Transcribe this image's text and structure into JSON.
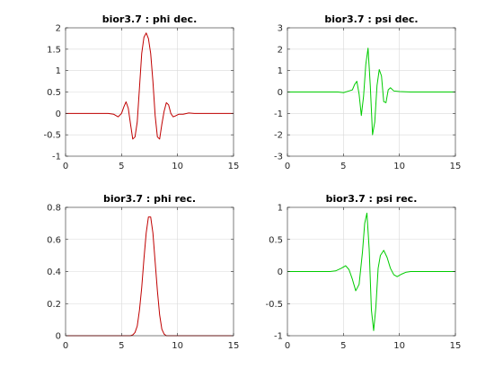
{
  "chart_data": [
    {
      "type": "line",
      "title": "bior3.7 : phi dec.",
      "xlim": [
        0,
        15
      ],
      "ylim": [
        -1,
        2
      ],
      "xticks": [
        0,
        5,
        10,
        15
      ],
      "yticks": [
        -1,
        -0.5,
        0,
        0.5,
        1,
        1.5,
        2
      ],
      "ytick_labels": [
        "-1",
        "-0.5",
        "0",
        "0.5",
        "1",
        "1.5",
        "2"
      ],
      "grid": true,
      "series": [
        {
          "color": "#c00000",
          "x": [
            0,
            3,
            3.8,
            4.3,
            4.7,
            5.0,
            5.2,
            5.4,
            5.6,
            5.8,
            6.0,
            6.2,
            6.4,
            6.6,
            6.8,
            7.0,
            7.2,
            7.4,
            7.6,
            7.8,
            8.0,
            8.2,
            8.4,
            8.6,
            8.8,
            9.0,
            9.2,
            9.4,
            9.6,
            9.8,
            10.1,
            10.5,
            11,
            11.5,
            15
          ],
          "y": [
            0,
            0,
            0,
            -0.02,
            -0.08,
            0.0,
            0.15,
            0.27,
            0.12,
            -0.25,
            -0.6,
            -0.55,
            -0.2,
            0.6,
            1.4,
            1.78,
            1.88,
            1.75,
            1.4,
            0.75,
            -0.05,
            -0.55,
            -0.6,
            -0.25,
            0.05,
            0.25,
            0.2,
            0.0,
            -0.08,
            -0.06,
            -0.02,
            -0.02,
            0.01,
            0,
            0
          ]
        }
      ]
    },
    {
      "type": "line",
      "title": "bior3.7 : psi dec.",
      "xlim": [
        0,
        15
      ],
      "ylim": [
        -3,
        3
      ],
      "xticks": [
        0,
        5,
        10,
        15
      ],
      "yticks": [
        -3,
        -2,
        -1,
        0,
        1,
        2,
        3
      ],
      "ytick_labels": [
        "-3",
        "-2",
        "-1",
        "0",
        "1",
        "2",
        "3"
      ],
      "grid": true,
      "series": [
        {
          "color": "#00cc00",
          "x": [
            0,
            4.5,
            5.0,
            5.5,
            5.8,
            6.0,
            6.2,
            6.4,
            6.6,
            6.8,
            7.0,
            7.2,
            7.4,
            7.6,
            7.8,
            8.0,
            8.2,
            8.4,
            8.6,
            8.8,
            9.0,
            9.2,
            9.5,
            10,
            11,
            15
          ],
          "y": [
            0,
            0,
            -0.03,
            0.05,
            0.1,
            0.35,
            0.5,
            -0.1,
            -1.1,
            -0.2,
            1.3,
            2.05,
            0.3,
            -2.0,
            -1.4,
            0.3,
            1.05,
            0.75,
            -0.45,
            -0.5,
            0.1,
            0.2,
            0.05,
            0.02,
            0,
            0
          ]
        }
      ]
    },
    {
      "type": "line",
      "title": "bior3.7 : phi rec.",
      "xlim": [
        0,
        15
      ],
      "ylim": [
        0,
        0.8
      ],
      "xticks": [
        0,
        5,
        10,
        15
      ],
      "yticks": [
        0,
        0.2,
        0.4,
        0.6,
        0.8
      ],
      "ytick_labels": [
        "0",
        "0.2",
        "0.4",
        "0.6",
        "0.8"
      ],
      "grid": true,
      "series": [
        {
          "color": "#c00000",
          "x": [
            0,
            5.8,
            6.0,
            6.2,
            6.4,
            6.6,
            6.8,
            7.0,
            7.2,
            7.4,
            7.6,
            7.8,
            8.0,
            8.2,
            8.4,
            8.6,
            8.8,
            9.0,
            15
          ],
          "y": [
            0,
            0,
            0.005,
            0.02,
            0.06,
            0.16,
            0.3,
            0.48,
            0.64,
            0.74,
            0.74,
            0.64,
            0.46,
            0.28,
            0.13,
            0.04,
            0.01,
            0,
            0
          ]
        }
      ]
    },
    {
      "type": "line",
      "title": "bior3.7 : psi rec.",
      "xlim": [
        0,
        15
      ],
      "ylim": [
        -1,
        1
      ],
      "xticks": [
        0,
        5,
        10,
        15
      ],
      "yticks": [
        -1,
        -0.5,
        0,
        0.5,
        1
      ],
      "ytick_labels": [
        "-1",
        "-0.5",
        "0",
        "0.5",
        "1"
      ],
      "grid": true,
      "series": [
        {
          "color": "#00cc00",
          "x": [
            0,
            3.8,
            4.3,
            4.8,
            5.2,
            5.5,
            5.8,
            6.1,
            6.4,
            6.7,
            6.9,
            7.1,
            7.3,
            7.5,
            7.7,
            7.9,
            8.1,
            8.3,
            8.6,
            8.9,
            9.2,
            9.5,
            9.8,
            10.2,
            10.6,
            11,
            15
          ],
          "y": [
            0,
            0,
            0.01,
            0.05,
            0.09,
            0.03,
            -0.12,
            -0.3,
            -0.2,
            0.3,
            0.75,
            0.91,
            0.35,
            -0.6,
            -0.92,
            -0.55,
            0.05,
            0.25,
            0.33,
            0.22,
            0.05,
            -0.05,
            -0.08,
            -0.04,
            -0.01,
            0,
            0
          ]
        }
      ]
    }
  ]
}
